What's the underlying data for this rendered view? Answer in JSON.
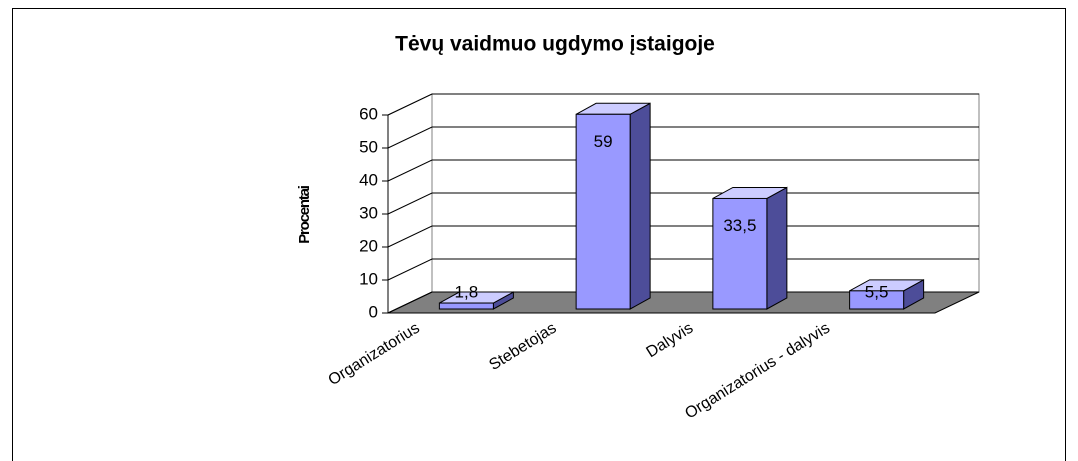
{
  "chart_data": {
    "type": "bar3d",
    "title": "Tėvų vaidmuo ugdymo įstaigoje",
    "y_label": "Procentai",
    "categories": [
      "Organizatorius",
      "Stebetojas",
      "Dalyvis",
      "Organizatorius - dalyvis"
    ],
    "values": [
      1.8,
      59,
      33.5,
      5.5
    ],
    "value_labels": [
      "1,8",
      "59",
      "33,5",
      "5,5"
    ],
    "color": "#9999ff",
    "ylim": [
      0,
      60
    ],
    "yticks": [
      0,
      10,
      20,
      30,
      40,
      50,
      60
    ],
    "grid": true
  }
}
